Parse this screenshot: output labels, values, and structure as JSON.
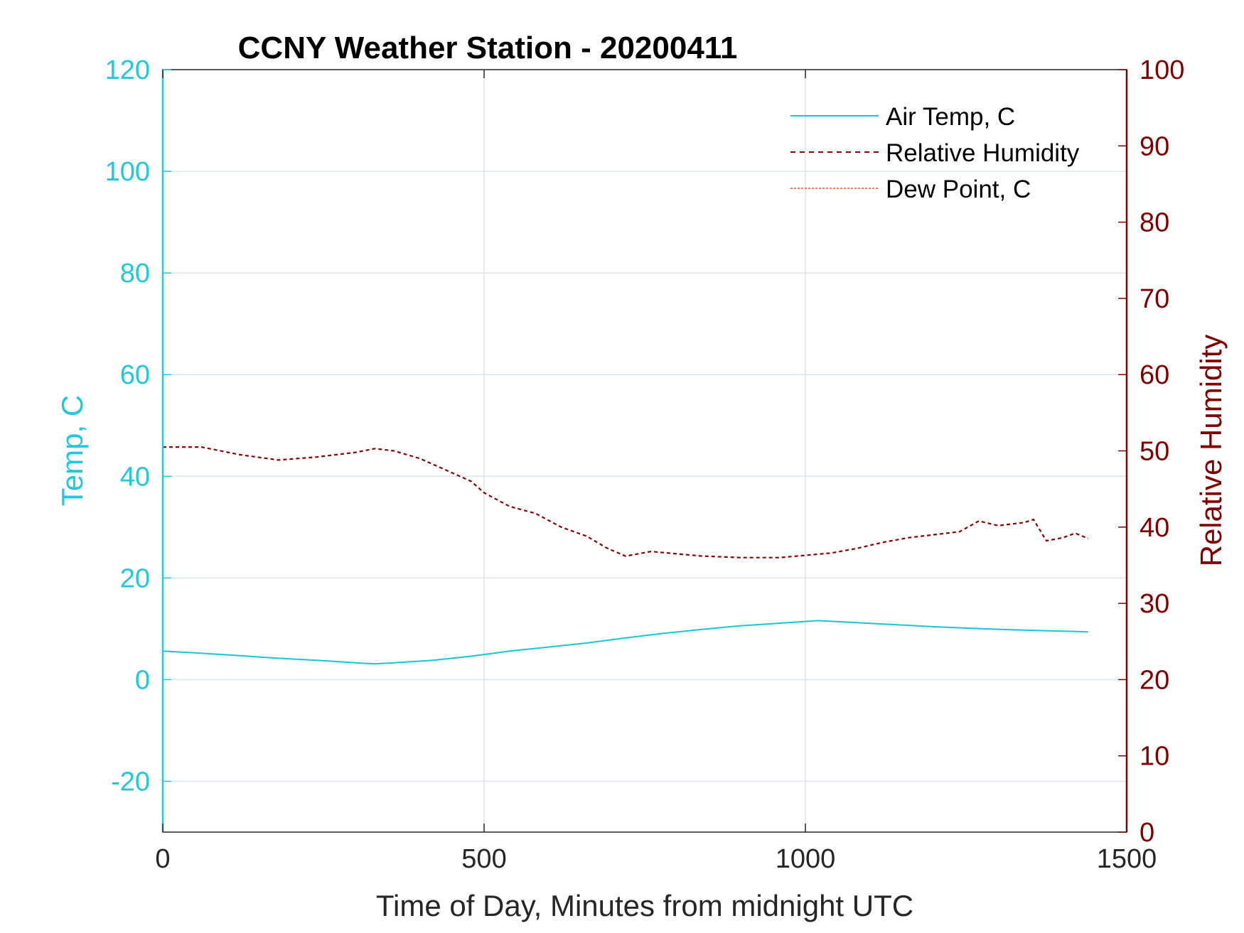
{
  "chart_data": {
    "type": "line",
    "title": "CCNY Weather Station - 20200411",
    "xlabel": "Time of Day, Minutes from midnight UTC",
    "ylabel_left": "Temp, C",
    "ylabel_right": "Relative Humidity",
    "xlim": [
      0,
      1500
    ],
    "ylim_left": [
      -30,
      120
    ],
    "ylim_right": [
      0,
      100
    ],
    "xticks": [
      0,
      500,
      1000,
      1500
    ],
    "xtick_labels": [
      "0",
      "500",
      "1000",
      "1500"
    ],
    "yticks_left": [
      -20,
      0,
      20,
      40,
      60,
      80,
      100,
      120
    ],
    "ytick_labels_left": [
      "-20",
      "0",
      "20",
      "40",
      "60",
      "80",
      "100",
      "120"
    ],
    "yticks_right": [
      0,
      10,
      20,
      30,
      40,
      50,
      60,
      70,
      80,
      90,
      100
    ],
    "ytick_labels_right": [
      "0",
      "10",
      "20",
      "30",
      "40",
      "50",
      "60",
      "70",
      "80",
      "90",
      "100"
    ],
    "grid": true,
    "legend_position": "top-right",
    "colors": {
      "left_axis": "#1fc8dc",
      "right_axis": "#800000",
      "grid": "#d9e4ee",
      "dew": "#e8502a"
    },
    "series": [
      {
        "name": "Air Temp, C",
        "axis": "left",
        "style": "solid",
        "color": "#17c6d8",
        "x": [
          0,
          60,
          120,
          180,
          240,
          300,
          330,
          360,
          420,
          480,
          540,
          600,
          660,
          720,
          780,
          840,
          900,
          960,
          1020,
          1080,
          1140,
          1200,
          1260,
          1320,
          1380,
          1440
        ],
        "values": [
          5.6,
          5.2,
          4.7,
          4.2,
          3.8,
          3.3,
          3.1,
          3.3,
          3.8,
          4.6,
          5.6,
          6.4,
          7.2,
          8.2,
          9.1,
          9.9,
          10.6,
          11.1,
          11.6,
          11.2,
          10.8,
          10.4,
          10.1,
          9.8,
          9.6,
          9.4
        ]
      },
      {
        "name": "Relative Humidity",
        "axis": "right",
        "style": "dashed",
        "color": "#8b0000",
        "x": [
          0,
          60,
          120,
          180,
          240,
          300,
          330,
          360,
          400,
          440,
          480,
          500,
          540,
          580,
          620,
          660,
          690,
          720,
          760,
          800,
          840,
          900,
          960,
          1000,
          1040,
          1080,
          1120,
          1160,
          1200,
          1240,
          1270,
          1280,
          1300,
          1320,
          1340,
          1355,
          1375,
          1400,
          1420,
          1440
        ],
        "values": [
          50.5,
          50.5,
          49.5,
          48.8,
          49.2,
          49.8,
          50.3,
          50,
          49,
          47.5,
          46,
          44.5,
          42.7,
          41.8,
          40,
          38.8,
          37.3,
          36.2,
          36.8,
          36.5,
          36.2,
          36,
          36,
          36.3,
          36.6,
          37.2,
          38,
          38.6,
          39,
          39.4,
          40.8,
          40.6,
          40.2,
          40.4,
          40.6,
          41,
          38.2,
          38.6,
          39.2,
          38.5
        ]
      },
      {
        "name": "Dew Point, C",
        "axis": "left",
        "style": "dotted",
        "color": "#e8502a",
        "x": [],
        "values": []
      }
    ]
  }
}
